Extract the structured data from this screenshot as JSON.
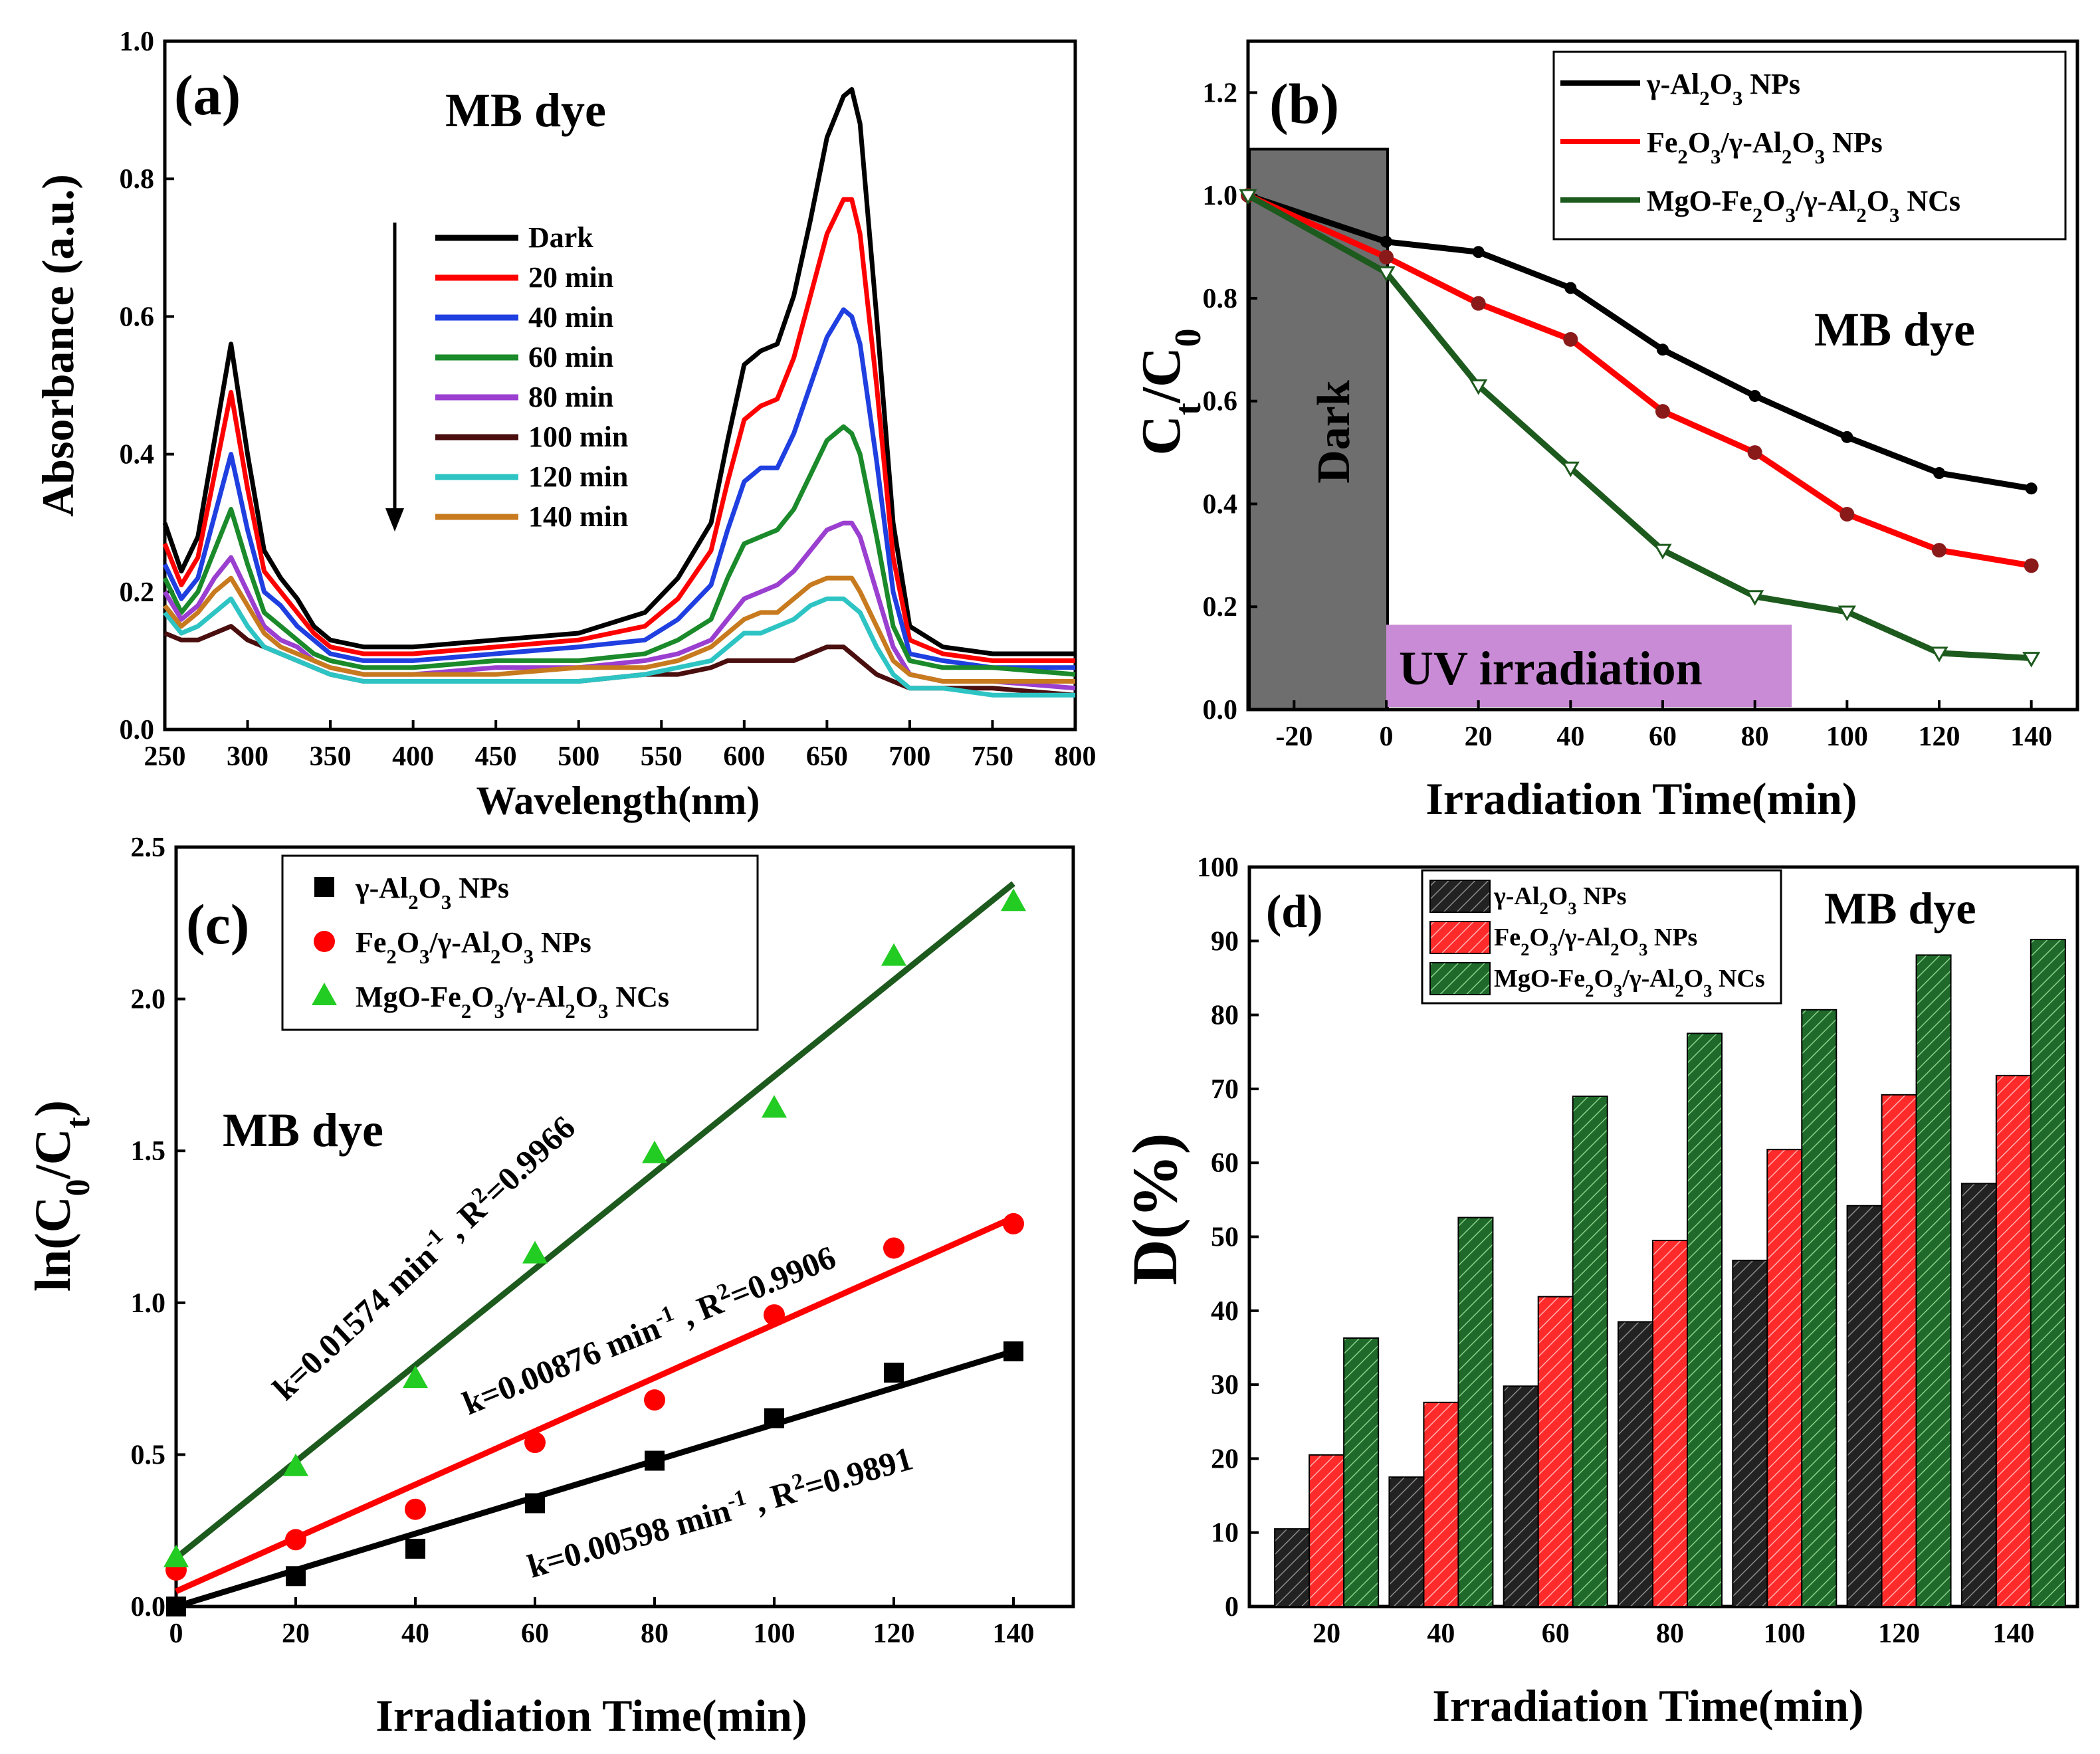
{
  "chart_data": [
    {
      "panel": "a",
      "type": "line",
      "panel_label": "(a)",
      "title": "MB dye",
      "xlabel": "Wavelength(nm)",
      "ylabel": "Absorbance (a.u.)",
      "xlim": [
        250,
        800
      ],
      "ylim": [
        0,
        1.0
      ],
      "xticks": [
        250,
        300,
        350,
        400,
        450,
        500,
        550,
        600,
        650,
        700,
        750,
        800
      ],
      "yticks": [
        0.0,
        0.2,
        0.4,
        0.6,
        0.8,
        1.0
      ],
      "x": [
        250,
        260,
        270,
        280,
        290,
        300,
        310,
        320,
        330,
        340,
        350,
        370,
        400,
        450,
        500,
        540,
        560,
        580,
        590,
        600,
        610,
        620,
        630,
        640,
        650,
        660,
        665,
        670,
        680,
        690,
        700,
        720,
        750,
        800
      ],
      "series": [
        {
          "name": "Dark",
          "color": "#000000",
          "values": [
            0.3,
            0.23,
            0.28,
            0.42,
            0.56,
            0.4,
            0.26,
            0.22,
            0.19,
            0.15,
            0.13,
            0.12,
            0.12,
            0.13,
            0.14,
            0.17,
            0.22,
            0.3,
            0.42,
            0.53,
            0.55,
            0.56,
            0.63,
            0.74,
            0.86,
            0.92,
            0.93,
            0.88,
            0.6,
            0.3,
            0.15,
            0.12,
            0.11,
            0.11
          ]
        },
        {
          "name": "20 min",
          "color": "#ff0000",
          "values": [
            0.27,
            0.21,
            0.25,
            0.37,
            0.49,
            0.35,
            0.23,
            0.2,
            0.17,
            0.14,
            0.12,
            0.11,
            0.11,
            0.12,
            0.13,
            0.15,
            0.19,
            0.26,
            0.36,
            0.45,
            0.47,
            0.48,
            0.54,
            0.63,
            0.72,
            0.77,
            0.77,
            0.72,
            0.5,
            0.25,
            0.13,
            0.11,
            0.1,
            0.1
          ]
        },
        {
          "name": "40 min",
          "color": "#1f3fe0",
          "values": [
            0.24,
            0.19,
            0.22,
            0.31,
            0.4,
            0.29,
            0.2,
            0.18,
            0.15,
            0.13,
            0.11,
            0.1,
            0.1,
            0.11,
            0.12,
            0.13,
            0.16,
            0.21,
            0.29,
            0.36,
            0.38,
            0.38,
            0.43,
            0.5,
            0.57,
            0.61,
            0.6,
            0.56,
            0.39,
            0.2,
            0.11,
            0.1,
            0.09,
            0.09
          ]
        },
        {
          "name": "60 min",
          "color": "#1a8a2a",
          "values": [
            0.22,
            0.17,
            0.2,
            0.26,
            0.32,
            0.24,
            0.17,
            0.15,
            0.13,
            0.11,
            0.1,
            0.09,
            0.09,
            0.1,
            0.1,
            0.11,
            0.13,
            0.16,
            0.22,
            0.27,
            0.28,
            0.29,
            0.32,
            0.37,
            0.42,
            0.44,
            0.43,
            0.4,
            0.28,
            0.15,
            0.1,
            0.09,
            0.09,
            0.08
          ]
        },
        {
          "name": "80 min",
          "color": "#9a3fd0",
          "values": [
            0.2,
            0.16,
            0.18,
            0.22,
            0.25,
            0.2,
            0.15,
            0.13,
            0.12,
            0.1,
            0.09,
            0.08,
            0.08,
            0.09,
            0.09,
            0.1,
            0.11,
            0.13,
            0.16,
            0.19,
            0.2,
            0.21,
            0.23,
            0.26,
            0.29,
            0.3,
            0.3,
            0.28,
            0.2,
            0.12,
            0.08,
            0.07,
            0.07,
            0.06
          ]
        },
        {
          "name": "100 min",
          "color": "#4a0e0e",
          "values": [
            0.14,
            0.13,
            0.13,
            0.14,
            0.15,
            0.13,
            0.12,
            0.11,
            0.1,
            0.09,
            0.08,
            0.07,
            0.07,
            0.07,
            0.07,
            0.08,
            0.08,
            0.09,
            0.1,
            0.1,
            0.1,
            0.1,
            0.1,
            0.11,
            0.12,
            0.12,
            0.11,
            0.1,
            0.08,
            0.07,
            0.06,
            0.06,
            0.06,
            0.05
          ]
        },
        {
          "name": "120 min",
          "color": "#2ec4c4",
          "values": [
            0.17,
            0.14,
            0.15,
            0.17,
            0.19,
            0.15,
            0.12,
            0.11,
            0.1,
            0.09,
            0.08,
            0.07,
            0.07,
            0.07,
            0.07,
            0.08,
            0.09,
            0.1,
            0.12,
            0.14,
            0.14,
            0.15,
            0.16,
            0.18,
            0.19,
            0.19,
            0.18,
            0.17,
            0.12,
            0.08,
            0.06,
            0.06,
            0.05,
            0.05
          ]
        },
        {
          "name": "140 min",
          "color": "#c87a1e",
          "values": [
            0.18,
            0.15,
            0.17,
            0.2,
            0.22,
            0.18,
            0.14,
            0.12,
            0.11,
            0.1,
            0.09,
            0.08,
            0.08,
            0.08,
            0.09,
            0.09,
            0.1,
            0.12,
            0.14,
            0.16,
            0.17,
            0.17,
            0.19,
            0.21,
            0.22,
            0.22,
            0.22,
            0.2,
            0.15,
            0.1,
            0.08,
            0.07,
            0.07,
            0.07
          ]
        }
      ]
    },
    {
      "panel": "b",
      "type": "line",
      "panel_label": "(b)",
      "xlabel": "Irradiation Time(min)",
      "ylabel": "Ct/C0",
      "xlim": [
        -30,
        150
      ],
      "ylim": [
        0,
        1.3
      ],
      "xticks": [
        -20,
        0,
        20,
        40,
        60,
        80,
        100,
        120,
        140
      ],
      "yticks": [
        0.0,
        0.2,
        0.4,
        0.6,
        0.8,
        1.0,
        1.2
      ],
      "dark_label": "Dark",
      "uv_label": "UV irradiation",
      "annotation": "MB dye",
      "x": [
        -30,
        0,
        20,
        40,
        60,
        80,
        100,
        120,
        140
      ],
      "series": [
        {
          "name": "γ-Al2O3 NPs",
          "color": "#000000",
          "values": [
            1.0,
            0.91,
            0.89,
            0.82,
            0.7,
            0.61,
            0.53,
            0.46,
            0.43
          ]
        },
        {
          "name": "Fe2O3/γ-Al2O3 NPs",
          "color": "#ff0000",
          "values": [
            1.0,
            0.88,
            0.79,
            0.72,
            0.58,
            0.5,
            0.38,
            0.31,
            0.28
          ]
        },
        {
          "name": "MgO-Fe2O3/γ-Al2O3 NCs",
          "color": "#1d5a1d",
          "values": [
            1.0,
            0.85,
            0.63,
            0.47,
            0.31,
            0.22,
            0.19,
            0.11,
            0.1
          ]
        }
      ]
    },
    {
      "panel": "c",
      "type": "scatter",
      "panel_label": "(c)",
      "xlabel": "Irradiation Time(min)",
      "ylabel": "ln(C0/Ct)",
      "xlim": [
        0,
        150
      ],
      "ylim": [
        0,
        2.5
      ],
      "xticks": [
        0,
        20,
        40,
        60,
        80,
        100,
        120,
        140
      ],
      "yticks": [
        0.0,
        0.5,
        1.0,
        1.5,
        2.0,
        2.5
      ],
      "annotation": "MB dye",
      "x": [
        0,
        20,
        40,
        60,
        80,
        100,
        120,
        140
      ],
      "series": [
        {
          "name": "γ-Al2O3 NPs",
          "marker": "square",
          "color": "#000000",
          "values": [
            0.0,
            0.1,
            0.19,
            0.34,
            0.48,
            0.62,
            0.77,
            0.84
          ],
          "fit": [
            0.0,
            0.84
          ],
          "equation": "k=0.00598 min-1 , R2=0.9891"
        },
        {
          "name": "Fe2O3/γ-Al2O3 NPs",
          "marker": "circle",
          "color": "#ff0000",
          "values": [
            0.12,
            0.22,
            0.32,
            0.54,
            0.68,
            0.96,
            1.18,
            1.26
          ],
          "fit": [
            0.05,
            1.28
          ],
          "equation": "k=0.00876 min-1 , R2=0.9906"
        },
        {
          "name": "MgO-Fe2O3/γ-Al2O3 NCs",
          "marker": "triangle",
          "color": "#22cc22",
          "line_color": "#1d5a1d",
          "values": [
            0.16,
            0.46,
            0.75,
            1.16,
            1.49,
            1.64,
            2.14,
            2.32
          ],
          "fit": [
            0.16,
            2.38
          ],
          "equation": "k=0.01574 min-1 , R2=0.9966"
        }
      ]
    },
    {
      "panel": "d",
      "type": "bar",
      "panel_label": "(d)",
      "xlabel": "Irradiation Time(min)",
      "ylabel": "D(%)",
      "ylim": [
        0,
        100
      ],
      "yticks": [
        0,
        10,
        20,
        30,
        40,
        50,
        60,
        70,
        80,
        90,
        100
      ],
      "annotation": "MB dye",
      "categories": [
        "20",
        "40",
        "60",
        "80",
        "100",
        "120",
        "140"
      ],
      "series": [
        {
          "name": "γ-Al2O3 NPs",
          "color": "#222222",
          "values": [
            10.5,
            17.5,
            29.8,
            38.5,
            46.8,
            54.2,
            57.2
          ]
        },
        {
          "name": "Fe2O3/γ-Al2O3 NPs",
          "color": "#ff2a2a",
          "values": [
            20.5,
            27.6,
            41.9,
            49.5,
            61.8,
            69.2,
            71.8
          ]
        },
        {
          "name": "MgO-Fe2O3/γ-Al2O3 NCs",
          "color": "#1f6a2a",
          "values": [
            36.3,
            52.6,
            69.0,
            77.5,
            80.7,
            88.1,
            90.2
          ]
        }
      ]
    }
  ]
}
